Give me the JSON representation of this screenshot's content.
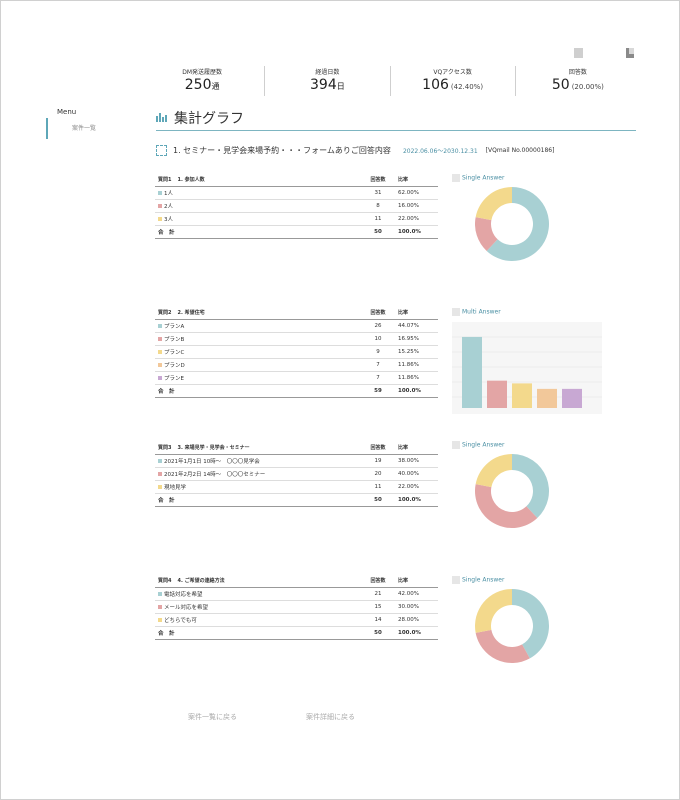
{
  "stats": [
    {
      "label": "DM発送履歴数",
      "value": "250",
      "unit": "通",
      "sub": ""
    },
    {
      "label": "経過日数",
      "value": "394",
      "unit": "日",
      "sub": ""
    },
    {
      "label": "VQアクセス数",
      "value": "106",
      "unit": "",
      "sub": "(42.40%)"
    },
    {
      "label": "回答数",
      "value": "50",
      "unit": "",
      "sub": "(20.00%)"
    }
  ],
  "sidebar": {
    "menu_title": "Menu",
    "item": "案件一覧"
  },
  "page": {
    "title": "集計グラフ",
    "form_title": "1. セミナー・見学会来場予約・・・フォームありご回答内容",
    "date_range": "2022.06.06〜2030.12.31",
    "vq": "[VQmail No.00000186]"
  },
  "table_headers": {
    "count": "回答数",
    "rate": "比率"
  },
  "total_label": "合　計",
  "questions": [
    {
      "no": "質問1",
      "title": "1. 参加人数",
      "chart_label": "Single Answer",
      "rows": [
        {
          "label": "1人",
          "count": "31",
          "rate": "62.00%",
          "color": "#a8d0d3"
        },
        {
          "label": "2人",
          "count": "8",
          "rate": "16.00%",
          "color": "#e3a5a5"
        },
        {
          "label": "3人",
          "count": "11",
          "rate": "22.00%",
          "color": "#f3d98c"
        }
      ],
      "total": {
        "count": "50",
        "rate": "100.0%"
      }
    },
    {
      "no": "質問2",
      "title": "2. 希望住宅",
      "chart_label": "Multi Answer",
      "rows": [
        {
          "label": "プランA",
          "count": "26",
          "rate": "44.07%",
          "color": "#a8d0d3"
        },
        {
          "label": "プランB",
          "count": "10",
          "rate": "16.95%",
          "color": "#e3a5a5"
        },
        {
          "label": "プランC",
          "count": "9",
          "rate": "15.25%",
          "color": "#f3d98c"
        },
        {
          "label": "プランD",
          "count": "7",
          "rate": "11.86%",
          "color": "#f2c89a"
        },
        {
          "label": "プランE",
          "count": "7",
          "rate": "11.86%",
          "color": "#c8a8d3"
        }
      ],
      "total": {
        "count": "59",
        "rate": "100.0%"
      }
    },
    {
      "no": "質問3",
      "title": "3. 来場見学・見学会・セミナー",
      "chart_label": "Single Answer",
      "rows": [
        {
          "label": "2021年1月1日 10時〜　〇〇〇見学会",
          "count": "19",
          "rate": "38.00%",
          "color": "#a8d0d3"
        },
        {
          "label": "2021年2月2日 14時〜　〇〇〇セミナー",
          "count": "20",
          "rate": "40.00%",
          "color": "#e3a5a5"
        },
        {
          "label": "現地見学",
          "count": "11",
          "rate": "22.00%",
          "color": "#f3d98c"
        }
      ],
      "total": {
        "count": "50",
        "rate": "100.0%"
      }
    },
    {
      "no": "質問4",
      "title": "4. ご希望の連絡方法",
      "chart_label": "Single Answer",
      "rows": [
        {
          "label": "電話対応を希望",
          "count": "21",
          "rate": "42.00%",
          "color": "#a8d0d3"
        },
        {
          "label": "メール対応を希望",
          "count": "15",
          "rate": "30.00%",
          "color": "#e3a5a5"
        },
        {
          "label": "どちらでも可",
          "count": "14",
          "rate": "28.00%",
          "color": "#f3d98c"
        }
      ],
      "total": {
        "count": "50",
        "rate": "100.0%"
      }
    }
  ],
  "chart_data": [
    {
      "type": "pie",
      "title": "Single Answer",
      "categories": [
        "1人",
        "2人",
        "3人"
      ],
      "values": [
        31,
        8,
        11
      ],
      "colors": [
        "#a8d0d3",
        "#e3a5a5",
        "#f3d98c"
      ]
    },
    {
      "type": "bar",
      "title": "Multi Answer",
      "categories": [
        "プランA",
        "プランB",
        "プランC",
        "プランD",
        "プランE"
      ],
      "values": [
        26,
        10,
        9,
        7,
        7
      ],
      "colors": [
        "#a8d0d3",
        "#e3a5a5",
        "#f3d98c",
        "#f2c89a",
        "#c8a8d3"
      ],
      "ylim": [
        0,
        30
      ]
    },
    {
      "type": "pie",
      "title": "Single Answer",
      "categories": [
        "2021年1月1日 10時〜　〇〇〇見学会",
        "2021年2月2日 14時〜　〇〇〇セミナー",
        "現地見学"
      ],
      "values": [
        19,
        20,
        11
      ],
      "colors": [
        "#a8d0d3",
        "#e3a5a5",
        "#f3d98c"
      ]
    },
    {
      "type": "pie",
      "title": "Single Answer",
      "categories": [
        "電話対応を希望",
        "メール対応を希望",
        "どちらでも可"
      ],
      "values": [
        21,
        15,
        14
      ],
      "colors": [
        "#a8d0d3",
        "#e3a5a5",
        "#f3d98c"
      ]
    }
  ],
  "buttons": {
    "back_list": "案件一覧に戻る",
    "back_detail": "案件詳細に戻る"
  }
}
